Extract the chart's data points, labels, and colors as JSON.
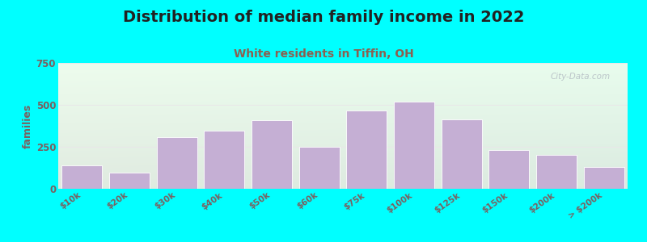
{
  "title": "Distribution of median family income in 2022",
  "subtitle": "White residents in Tiffin, OH",
  "ylabel": "families",
  "categories": [
    "$10k",
    "$20k",
    "$30k",
    "$40k",
    "$50k",
    "$60k",
    "$75k",
    "$100k",
    "$125k",
    "$150k",
    "$200k",
    "> $200k"
  ],
  "values": [
    140,
    95,
    310,
    345,
    410,
    248,
    465,
    520,
    415,
    230,
    200,
    130
  ],
  "bar_color": "#c5afd4",
  "bar_edge_color": "#ffffff",
  "background_outer": "#00ffff",
  "background_inner_gradient_top_left": "#cce8cc",
  "background_inner_gradient_right": "#f0f0f0",
  "title_color": "#222222",
  "subtitle_color": "#8b6050",
  "ylabel_color": "#7a6060",
  "tick_color": "#7a6060",
  "grid_color": "#e8e8e8",
  "ylim": [
    0,
    750
  ],
  "yticks": [
    0,
    250,
    500,
    750
  ],
  "watermark": "City-Data.com",
  "title_fontsize": 14,
  "subtitle_fontsize": 10,
  "ylabel_fontsize": 9
}
